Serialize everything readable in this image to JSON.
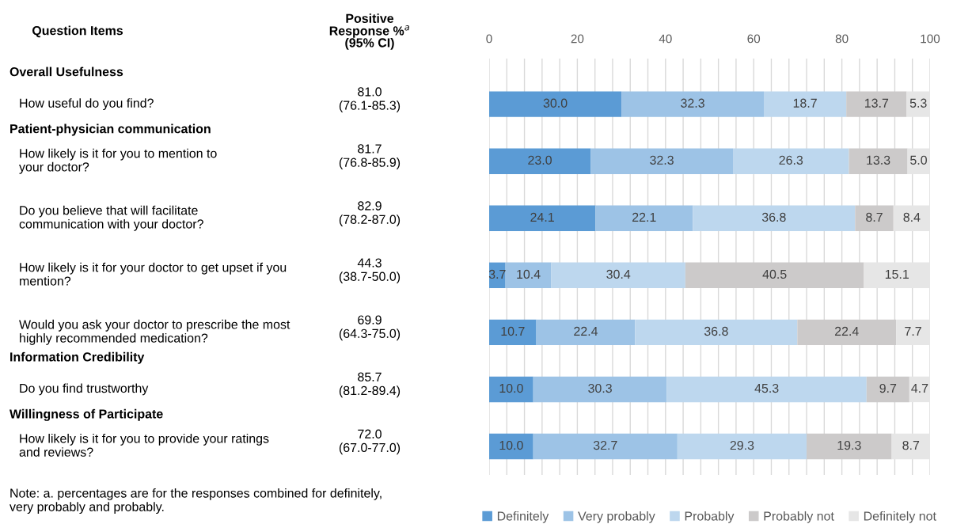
{
  "chart_data": {
    "type": "bar",
    "orientation": "horizontal",
    "stacked": true,
    "grid": "x",
    "legend": "bottom",
    "categories": [
      "How useful do you find?",
      "How likely is it for you to mention to\nyour doctor?",
      "Do you believe that will facilitate\ncommunication with your doctor?",
      "How likely is it for your doctor to get upset if you\nmention?",
      "Would you ask your doctor to prescribe the most\nhighly recommended medication?",
      "Do you find trustworthy",
      "How likely is it for you to provide your ratings\nand reviews?"
    ],
    "series": [
      {
        "name": "Definitely",
        "color": "#5b9bd5",
        "values": [
          30.0,
          23.0,
          24.1,
          3.7,
          10.7,
          10.0,
          10.0
        ],
        "value_labels": [
          "30.0",
          "23.0",
          "24.1",
          "3.7",
          "10.7",
          "10.0",
          "10.0"
        ]
      },
      {
        "name": "Very probably",
        "color": "#9dc3e6",
        "values": [
          32.3,
          32.3,
          22.1,
          10.4,
          22.4,
          30.3,
          32.7
        ],
        "value_labels": [
          "32.3",
          "32.3",
          "22.1",
          "10.4",
          "22.4",
          "30.3",
          "32.7"
        ]
      },
      {
        "name": "Probably",
        "color": "#bdd7ee",
        "values": [
          18.7,
          26.3,
          36.8,
          30.4,
          36.8,
          45.3,
          29.3
        ],
        "value_labels": [
          "18.7",
          "26.3",
          "36.8",
          "30.4",
          "36.8",
          "45.3",
          "29.3"
        ]
      },
      {
        "name": "Probably not",
        "color": "#cccaca",
        "values": [
          13.7,
          13.3,
          8.7,
          40.5,
          22.4,
          9.7,
          19.3
        ],
        "value_labels": [
          "13.7",
          "13.3",
          "8.7",
          "40.5",
          "22.4",
          "9.7",
          "19.3"
        ]
      },
      {
        "name": "Definitely not",
        "color": "#e6e6e6",
        "values": [
          5.3,
          5.0,
          8.4,
          15.1,
          7.7,
          4.7,
          8.7
        ],
        "value_labels": [
          "5.3",
          "5.0",
          "8.4",
          "15.1",
          "7.7",
          "4.7",
          "8.7"
        ]
      }
    ],
    "data_labels": true,
    "xlim": [
      0,
      100
    ],
    "x2lim": [
      0,
      100
    ],
    "x2ticks": [
      0,
      {
        "value": 4,
        "label": null
      },
      {
        "value": 8,
        "label": null
      },
      {
        "value": 12,
        "label": null
      },
      {
        "value": 16,
        "label": null
      },
      20,
      {
        "value": 24,
        "label": null
      },
      {
        "value": 28,
        "label": null
      },
      {
        "value": 32,
        "label": null
      },
      {
        "value": 36,
        "label": null
      },
      40,
      {
        "value": 44,
        "label": null
      },
      {
        "value": 48,
        "label": null
      },
      {
        "value": 52,
        "label": null
      },
      {
        "value": 56,
        "label": null
      },
      60,
      {
        "value": 64,
        "label": null
      },
      {
        "value": 68,
        "label": null
      },
      {
        "value": 72,
        "label": null
      },
      {
        "value": 76,
        "label": null
      },
      80,
      {
        "value": 84,
        "label": null
      },
      {
        "value": 88,
        "label": null
      },
      {
        "value": 92,
        "label": null
      },
      {
        "value": 96,
        "label": null
      },
      100
    ],
    "annotations": [
      "Question Items",
      "Positive\nResponse %$^{a}$\n(95% CI)",
      "Overall Usefulness",
      "Patient-physician communication",
      "Information Credibility",
      "Willingness of Participate",
      "81.0\n(76.1-85.3)",
      "81.7\n(76.8-85.9)",
      "82.9\n(78.2-87.0)",
      "44.3\n(38.7-50.0)",
      "69.9\n(64.3-75.0)",
      "85.7\n(81.2-89.4)",
      "72.0\n(67.0-77.0)",
      "Note: a. percentages are for the responses combined for definitely,\nvery probably and probably."
    ]
  }
}
